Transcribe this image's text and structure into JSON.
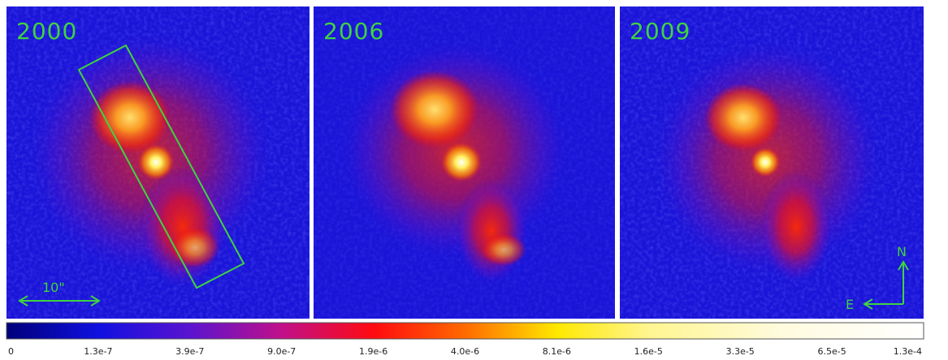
{
  "panels": [
    {
      "year": "2000"
    },
    {
      "year": "2006"
    },
    {
      "year": "2009"
    }
  ],
  "scale_bar": "10\"",
  "compass": {
    "north": "N",
    "east": "E"
  },
  "colorbar": {
    "ticks": [
      "0",
      "1.3e-7",
      "3.9e-7",
      "9.0e-7",
      "1.9e-6",
      "4.0e-6",
      "8.1e-6",
      "1.6e-5",
      "3.3e-5",
      "6.5e-5",
      "1.3e-4"
    ]
  }
}
